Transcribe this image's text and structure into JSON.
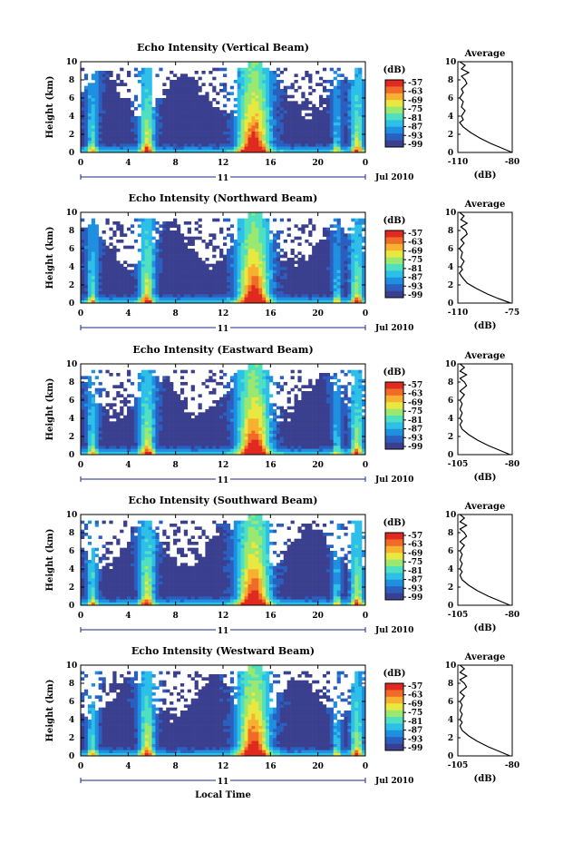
{
  "chart_data": [
    {
      "type": "heatmap",
      "title": "Echo Intensity (Vertical Beam)",
      "ylabel": "Height (km)",
      "x_ticks": [
        "0",
        "4",
        "8",
        "12",
        "16",
        "20",
        "0"
      ],
      "y_ticks": [
        "0",
        "2",
        "4",
        "6",
        "8",
        "10"
      ],
      "xlim": [
        0,
        24
      ],
      "ylim": [
        0,
        10
      ],
      "date_label": "11",
      "month_label": "Jul 2010",
      "colorbar": {
        "label": "(dB)",
        "ticks": [
          "-57",
          "-63",
          "-69",
          "-75",
          "-81",
          "-87",
          "-93",
          "-99"
        ]
      },
      "average": {
        "title": "Average",
        "xlabel": "(dB)",
        "x_ticks": [
          "-110",
          "-80"
        ],
        "y_ticks": [
          "0",
          "2",
          "4",
          "6",
          "8",
          "10"
        ],
        "xlim": [
          -110,
          -80
        ],
        "profile": [
          [
            -80,
            0
          ],
          [
            -86,
            0.5
          ],
          [
            -92,
            1
          ],
          [
            -98,
            1.6
          ],
          [
            -103,
            2.2
          ],
          [
            -107,
            2.8
          ],
          [
            -109,
            3.3
          ],
          [
            -107,
            3.6
          ],
          [
            -108,
            4
          ],
          [
            -106,
            4.6
          ],
          [
            -108,
            5
          ],
          [
            -107,
            5.6
          ],
          [
            -109,
            6
          ],
          [
            -107,
            6.6
          ],
          [
            -108,
            7
          ],
          [
            -105,
            7.6
          ],
          [
            -106,
            8
          ],
          [
            -108,
            8.4
          ],
          [
            -104,
            8.8
          ],
          [
            -108,
            9.2
          ],
          [
            -106,
            9.6
          ],
          [
            -109,
            10
          ]
        ]
      }
    },
    {
      "type": "heatmap",
      "title": "Echo Intensity (Northward Beam)",
      "ylabel": "Height (km)",
      "x_ticks": [
        "0",
        "4",
        "8",
        "12",
        "16",
        "20",
        "0"
      ],
      "y_ticks": [
        "0",
        "2",
        "4",
        "6",
        "8",
        "10"
      ],
      "xlim": [
        0,
        24
      ],
      "ylim": [
        0,
        10
      ],
      "date_label": "11",
      "month_label": "Jul 2010",
      "colorbar": {
        "label": "(dB)",
        "ticks": [
          "-57",
          "-63",
          "-69",
          "-75",
          "-81",
          "-87",
          "-93",
          "-99"
        ]
      },
      "average": {
        "title": "Average",
        "xlabel": "(dB)",
        "x_ticks": [
          "-110",
          "-75"
        ],
        "y_ticks": [
          "0",
          "2",
          "4",
          "6",
          "8",
          "10"
        ],
        "xlim": [
          -110,
          -75
        ],
        "profile": [
          [
            -76,
            0
          ],
          [
            -84,
            0.5
          ],
          [
            -91,
            1
          ],
          [
            -98,
            1.6
          ],
          [
            -104,
            2.2
          ],
          [
            -107,
            2.8
          ],
          [
            -109,
            3.3
          ],
          [
            -107,
            3.7
          ],
          [
            -108,
            4
          ],
          [
            -106,
            4.6
          ],
          [
            -108,
            5
          ],
          [
            -107,
            5.6
          ],
          [
            -109,
            6
          ],
          [
            -106,
            6.6
          ],
          [
            -108,
            7
          ],
          [
            -104,
            7.6
          ],
          [
            -105,
            8
          ],
          [
            -108,
            8.4
          ],
          [
            -104,
            8.8
          ],
          [
            -108,
            9.2
          ],
          [
            -106,
            9.6
          ],
          [
            -109,
            10
          ]
        ]
      }
    },
    {
      "type": "heatmap",
      "title": "Echo Intensity (Eastward Beam)",
      "ylabel": "Height (km)",
      "x_ticks": [
        "0",
        "4",
        "8",
        "12",
        "16",
        "20",
        "0"
      ],
      "y_ticks": [
        "0",
        "2",
        "4",
        "6",
        "8",
        "10"
      ],
      "xlim": [
        0,
        24
      ],
      "ylim": [
        0,
        10
      ],
      "date_label": "11",
      "month_label": "Jul 2010",
      "colorbar": {
        "label": "(dB)",
        "ticks": [
          "-57",
          "-63",
          "-69",
          "-75",
          "-81",
          "-87",
          "-93",
          "-99"
        ]
      },
      "average": {
        "title": "Average",
        "xlabel": "(dB)",
        "x_ticks": [
          "-105",
          "-80"
        ],
        "y_ticks": [
          "0",
          "2",
          "4",
          "6",
          "8",
          "10"
        ],
        "xlim": [
          -105,
          -80
        ],
        "profile": [
          [
            -81,
            0
          ],
          [
            -86,
            0.5
          ],
          [
            -91,
            1
          ],
          [
            -96,
            1.6
          ],
          [
            -100,
            2.2
          ],
          [
            -103,
            2.8
          ],
          [
            -104,
            3.3
          ],
          [
            -103,
            3.7
          ],
          [
            -104,
            4
          ],
          [
            -103,
            4.6
          ],
          [
            -104,
            5
          ],
          [
            -103,
            5.6
          ],
          [
            -104,
            6
          ],
          [
            -102,
            6.6
          ],
          [
            -104,
            7
          ],
          [
            -101,
            7.6
          ],
          [
            -102,
            8
          ],
          [
            -104,
            8.4
          ],
          [
            -101,
            8.8
          ],
          [
            -104,
            9.2
          ],
          [
            -102,
            9.6
          ],
          [
            -104,
            10
          ]
        ]
      }
    },
    {
      "type": "heatmap",
      "title": "Echo Intensity (Southward Beam)",
      "ylabel": "Height (km)",
      "x_ticks": [
        "0",
        "4",
        "8",
        "12",
        "16",
        "20",
        "0"
      ],
      "y_ticks": [
        "0",
        "2",
        "4",
        "6",
        "8",
        "10"
      ],
      "xlim": [
        0,
        24
      ],
      "ylim": [
        0,
        10
      ],
      "date_label": "11",
      "month_label": "Jul 2010",
      "colorbar": {
        "label": "(dB)",
        "ticks": [
          "-57",
          "-63",
          "-69",
          "-75",
          "-81",
          "-87",
          "-93",
          "-99"
        ]
      },
      "average": {
        "title": "Average",
        "xlabel": "(dB)",
        "x_ticks": [
          "-105",
          "-80"
        ],
        "y_ticks": [
          "0",
          "2",
          "4",
          "6",
          "8",
          "10"
        ],
        "xlim": [
          -105,
          -80
        ],
        "profile": [
          [
            -81,
            0
          ],
          [
            -86,
            0.5
          ],
          [
            -91,
            1
          ],
          [
            -96,
            1.6
          ],
          [
            -100,
            2.2
          ],
          [
            -103,
            2.8
          ],
          [
            -104,
            3.3
          ],
          [
            -103,
            3.7
          ],
          [
            -104,
            4
          ],
          [
            -103,
            4.6
          ],
          [
            -104,
            5
          ],
          [
            -103,
            5.6
          ],
          [
            -104,
            6
          ],
          [
            -102,
            6.6
          ],
          [
            -104,
            7
          ],
          [
            -101,
            7.6
          ],
          [
            -102,
            8
          ],
          [
            -104,
            8.4
          ],
          [
            -101,
            8.8
          ],
          [
            -104,
            9.2
          ],
          [
            -102,
            9.6
          ],
          [
            -104,
            10
          ]
        ]
      }
    },
    {
      "type": "heatmap",
      "title": "Echo Intensity (Westward Beam)",
      "ylabel": "Height (km)",
      "xlabel": "Local Time",
      "x_ticks": [
        "0",
        "4",
        "8",
        "12",
        "16",
        "20",
        "0"
      ],
      "y_ticks": [
        "0",
        "2",
        "4",
        "6",
        "8",
        "10"
      ],
      "xlim": [
        0,
        24
      ],
      "ylim": [
        0,
        10
      ],
      "date_label": "11",
      "month_label": "Jul 2010",
      "colorbar": {
        "label": "(dB)",
        "ticks": [
          "-57",
          "-63",
          "-69",
          "-75",
          "-81",
          "-87",
          "-93",
          "-99"
        ]
      },
      "average": {
        "title": "Average",
        "xlabel": "(dB)",
        "x_ticks": [
          "-105",
          "-80"
        ],
        "y_ticks": [
          "0",
          "2",
          "4",
          "6",
          "8",
          "10"
        ],
        "xlim": [
          -105,
          -80
        ],
        "profile": [
          [
            -81,
            0
          ],
          [
            -86,
            0.5
          ],
          [
            -91,
            1
          ],
          [
            -96,
            1.6
          ],
          [
            -100,
            2.2
          ],
          [
            -103,
            2.8
          ],
          [
            -104,
            3.3
          ],
          [
            -103,
            3.7
          ],
          [
            -104,
            4
          ],
          [
            -103,
            4.6
          ],
          [
            -104,
            5
          ],
          [
            -103,
            5.6
          ],
          [
            -104,
            6
          ],
          [
            -102,
            6.6
          ],
          [
            -104,
            7
          ],
          [
            -101,
            7.6
          ],
          [
            -102,
            8
          ],
          [
            -104,
            8.4
          ],
          [
            -101,
            8.8
          ],
          [
            -104,
            9.2
          ],
          [
            -102,
            9.6
          ],
          [
            -104,
            10
          ]
        ]
      }
    }
  ],
  "colormap": [
    "#3a3f8f",
    "#2b5fbf",
    "#1f8fe0",
    "#2cc0e8",
    "#4fe0c0",
    "#9be870",
    "#e8e840",
    "#f8b030",
    "#f06a28",
    "#e02a20"
  ]
}
